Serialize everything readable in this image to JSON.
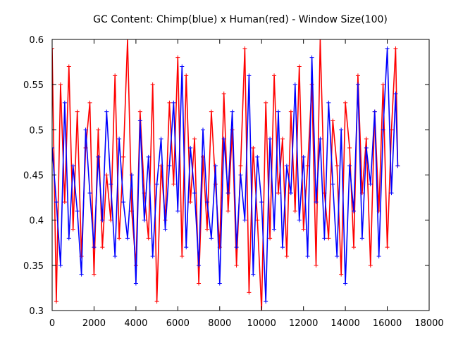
{
  "chart_data": {
    "type": "line",
    "title": "GC Content: Chimp(blue) x Human(red) - Window Size(100)",
    "xlabel": "",
    "ylabel": "",
    "xlim": [
      0,
      18000
    ],
    "ylim": [
      0.3,
      0.6
    ],
    "x_ticks": [
      "0",
      "2000",
      "4000",
      "6000",
      "8000",
      "10000",
      "12000",
      "14000",
      "16000",
      "18000"
    ],
    "y_ticks": [
      "0.3",
      "0.35",
      "0.4",
      "0.45",
      "0.5",
      "0.55",
      "0.6"
    ],
    "grid": false,
    "marker": "plus",
    "series": [
      {
        "color": "#ff0000",
        "x": [
          0,
          200,
          400,
          600,
          800,
          1000,
          1200,
          1400,
          1600,
          1800,
          2000,
          2200,
          2400,
          2600,
          2800,
          3000,
          3200,
          3400,
          3600,
          3800,
          4000,
          4200,
          4400,
          4600,
          4800,
          5000,
          5200,
          5400,
          5600,
          5800,
          6000,
          6200,
          6400,
          6600,
          6800,
          7000,
          7200,
          7400,
          7600,
          7800,
          8000,
          8200,
          8400,
          8600,
          8800,
          9000,
          9200,
          9400,
          9600,
          9800,
          10000,
          10200,
          10400,
          10600,
          10800,
          11000,
          11200,
          11400,
          11600,
          11800,
          12000,
          12200,
          12400,
          12600,
          12800,
          13000,
          13200,
          13400,
          13600,
          13800,
          14000,
          14200,
          14400,
          14600,
          14800,
          15000,
          15200,
          15400,
          15600,
          15800,
          16000,
          16200,
          16400,
          16500
        ],
        "y": [
          0.59,
          0.31,
          0.55,
          0.42,
          0.57,
          0.39,
          0.52,
          0.36,
          0.48,
          0.53,
          0.34,
          0.5,
          0.37,
          0.45,
          0.4,
          0.56,
          0.38,
          0.47,
          0.6,
          0.41,
          0.35,
          0.52,
          0.43,
          0.38,
          0.55,
          0.31,
          0.46,
          0.4,
          0.53,
          0.44,
          0.58,
          0.36,
          0.56,
          0.42,
          0.49,
          0.33,
          0.47,
          0.39,
          0.52,
          0.44,
          0.37,
          0.54,
          0.41,
          0.5,
          0.35,
          0.46,
          0.59,
          0.32,
          0.48,
          0.4,
          0.3,
          0.53,
          0.38,
          0.56,
          0.43,
          0.49,
          0.36,
          0.52,
          0.41,
          0.57,
          0.39,
          0.46,
          0.55,
          0.35,
          0.6,
          0.43,
          0.38,
          0.51,
          0.46,
          0.34,
          0.53,
          0.48,
          0.37,
          0.56,
          0.43,
          0.49,
          0.35,
          0.52,
          0.41,
          0.55,
          0.37,
          0.5,
          0.59,
          0.46
        ]
      },
      {
        "color": "#0000ff",
        "x": [
          0,
          200,
          400,
          600,
          800,
          1000,
          1200,
          1400,
          1600,
          1800,
          2000,
          2200,
          2400,
          2600,
          2800,
          3000,
          3200,
          3400,
          3600,
          3800,
          4000,
          4200,
          4400,
          4600,
          4800,
          5000,
          5200,
          5400,
          5600,
          5800,
          6000,
          6200,
          6400,
          6600,
          6800,
          7000,
          7200,
          7400,
          7600,
          7800,
          8000,
          8200,
          8400,
          8600,
          8800,
          9000,
          9200,
          9400,
          9600,
          9800,
          10000,
          10200,
          10400,
          10600,
          10800,
          11000,
          11200,
          11400,
          11600,
          11800,
          12000,
          12200,
          12400,
          12600,
          12800,
          13000,
          13200,
          13400,
          13600,
          13800,
          14000,
          14200,
          14400,
          14600,
          14800,
          15000,
          15200,
          15400,
          15600,
          15800,
          16000,
          16200,
          16400,
          16500
        ],
        "y": [
          0.48,
          0.42,
          0.35,
          0.53,
          0.38,
          0.46,
          0.41,
          0.34,
          0.5,
          0.43,
          0.37,
          0.47,
          0.4,
          0.52,
          0.44,
          0.36,
          0.49,
          0.42,
          0.38,
          0.45,
          0.33,
          0.51,
          0.4,
          0.47,
          0.36,
          0.44,
          0.49,
          0.39,
          0.46,
          0.53,
          0.41,
          0.57,
          0.37,
          0.48,
          0.43,
          0.35,
          0.5,
          0.42,
          0.38,
          0.46,
          0.33,
          0.49,
          0.43,
          0.52,
          0.37,
          0.45,
          0.4,
          0.56,
          0.34,
          0.47,
          0.42,
          0.31,
          0.49,
          0.39,
          0.52,
          0.37,
          0.46,
          0.43,
          0.55,
          0.4,
          0.47,
          0.36,
          0.58,
          0.42,
          0.49,
          0.38,
          0.53,
          0.44,
          0.36,
          0.5,
          0.33,
          0.46,
          0.41,
          0.55,
          0.38,
          0.48,
          0.44,
          0.52,
          0.36,
          0.5,
          0.59,
          0.43,
          0.54,
          0.46
        ]
      }
    ]
  }
}
